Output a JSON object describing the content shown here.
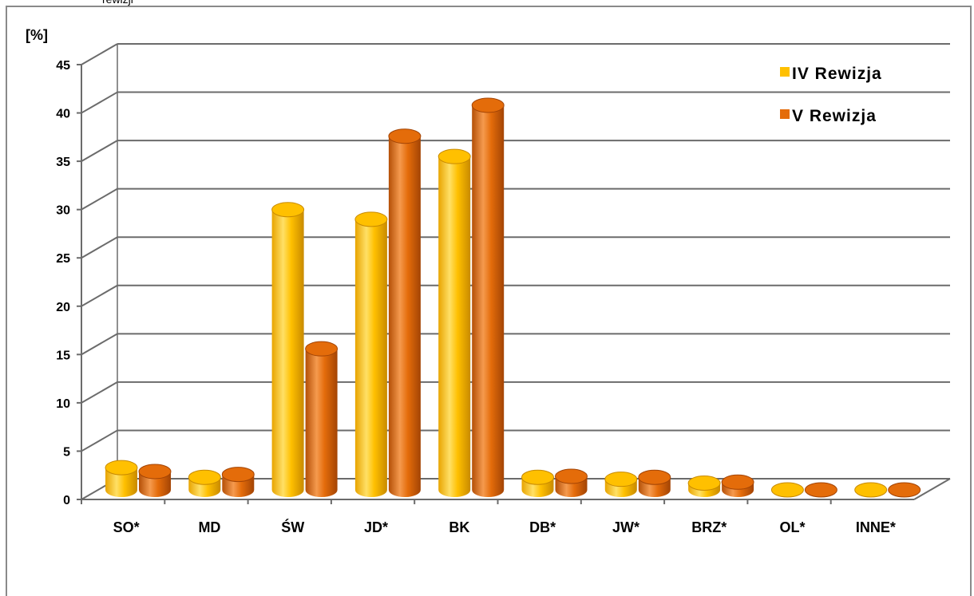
{
  "page": {
    "top_fragment": "rewizji"
  },
  "chart_data": {
    "type": "bar",
    "unit_label": "[%]",
    "categories": [
      "SO*",
      "MD",
      "ŚW",
      "JD*",
      "BK",
      "DB*",
      "JW*",
      "BRZ*",
      "OL*",
      "INNE*"
    ],
    "series": [
      {
        "name": "IV Rewizja",
        "values": [
          2.3,
          1.3,
          29.0,
          28.0,
          34.5,
          1.3,
          1.1,
          0.7,
          0.0,
          0.0
        ],
        "color": "#FFC000"
      },
      {
        "name": "V Rewizja",
        "values": [
          1.9,
          1.6,
          14.6,
          36.6,
          39.8,
          1.4,
          1.3,
          0.8,
          0.0,
          0.0
        ],
        "color": "#E46C0A"
      }
    ],
    "ylim": [
      0,
      45
    ],
    "yticks": [
      0,
      5,
      10,
      15,
      20,
      25,
      30,
      35,
      40,
      45
    ],
    "grid": true,
    "legend_position": "top-right",
    "style": "3d-cylinder"
  }
}
